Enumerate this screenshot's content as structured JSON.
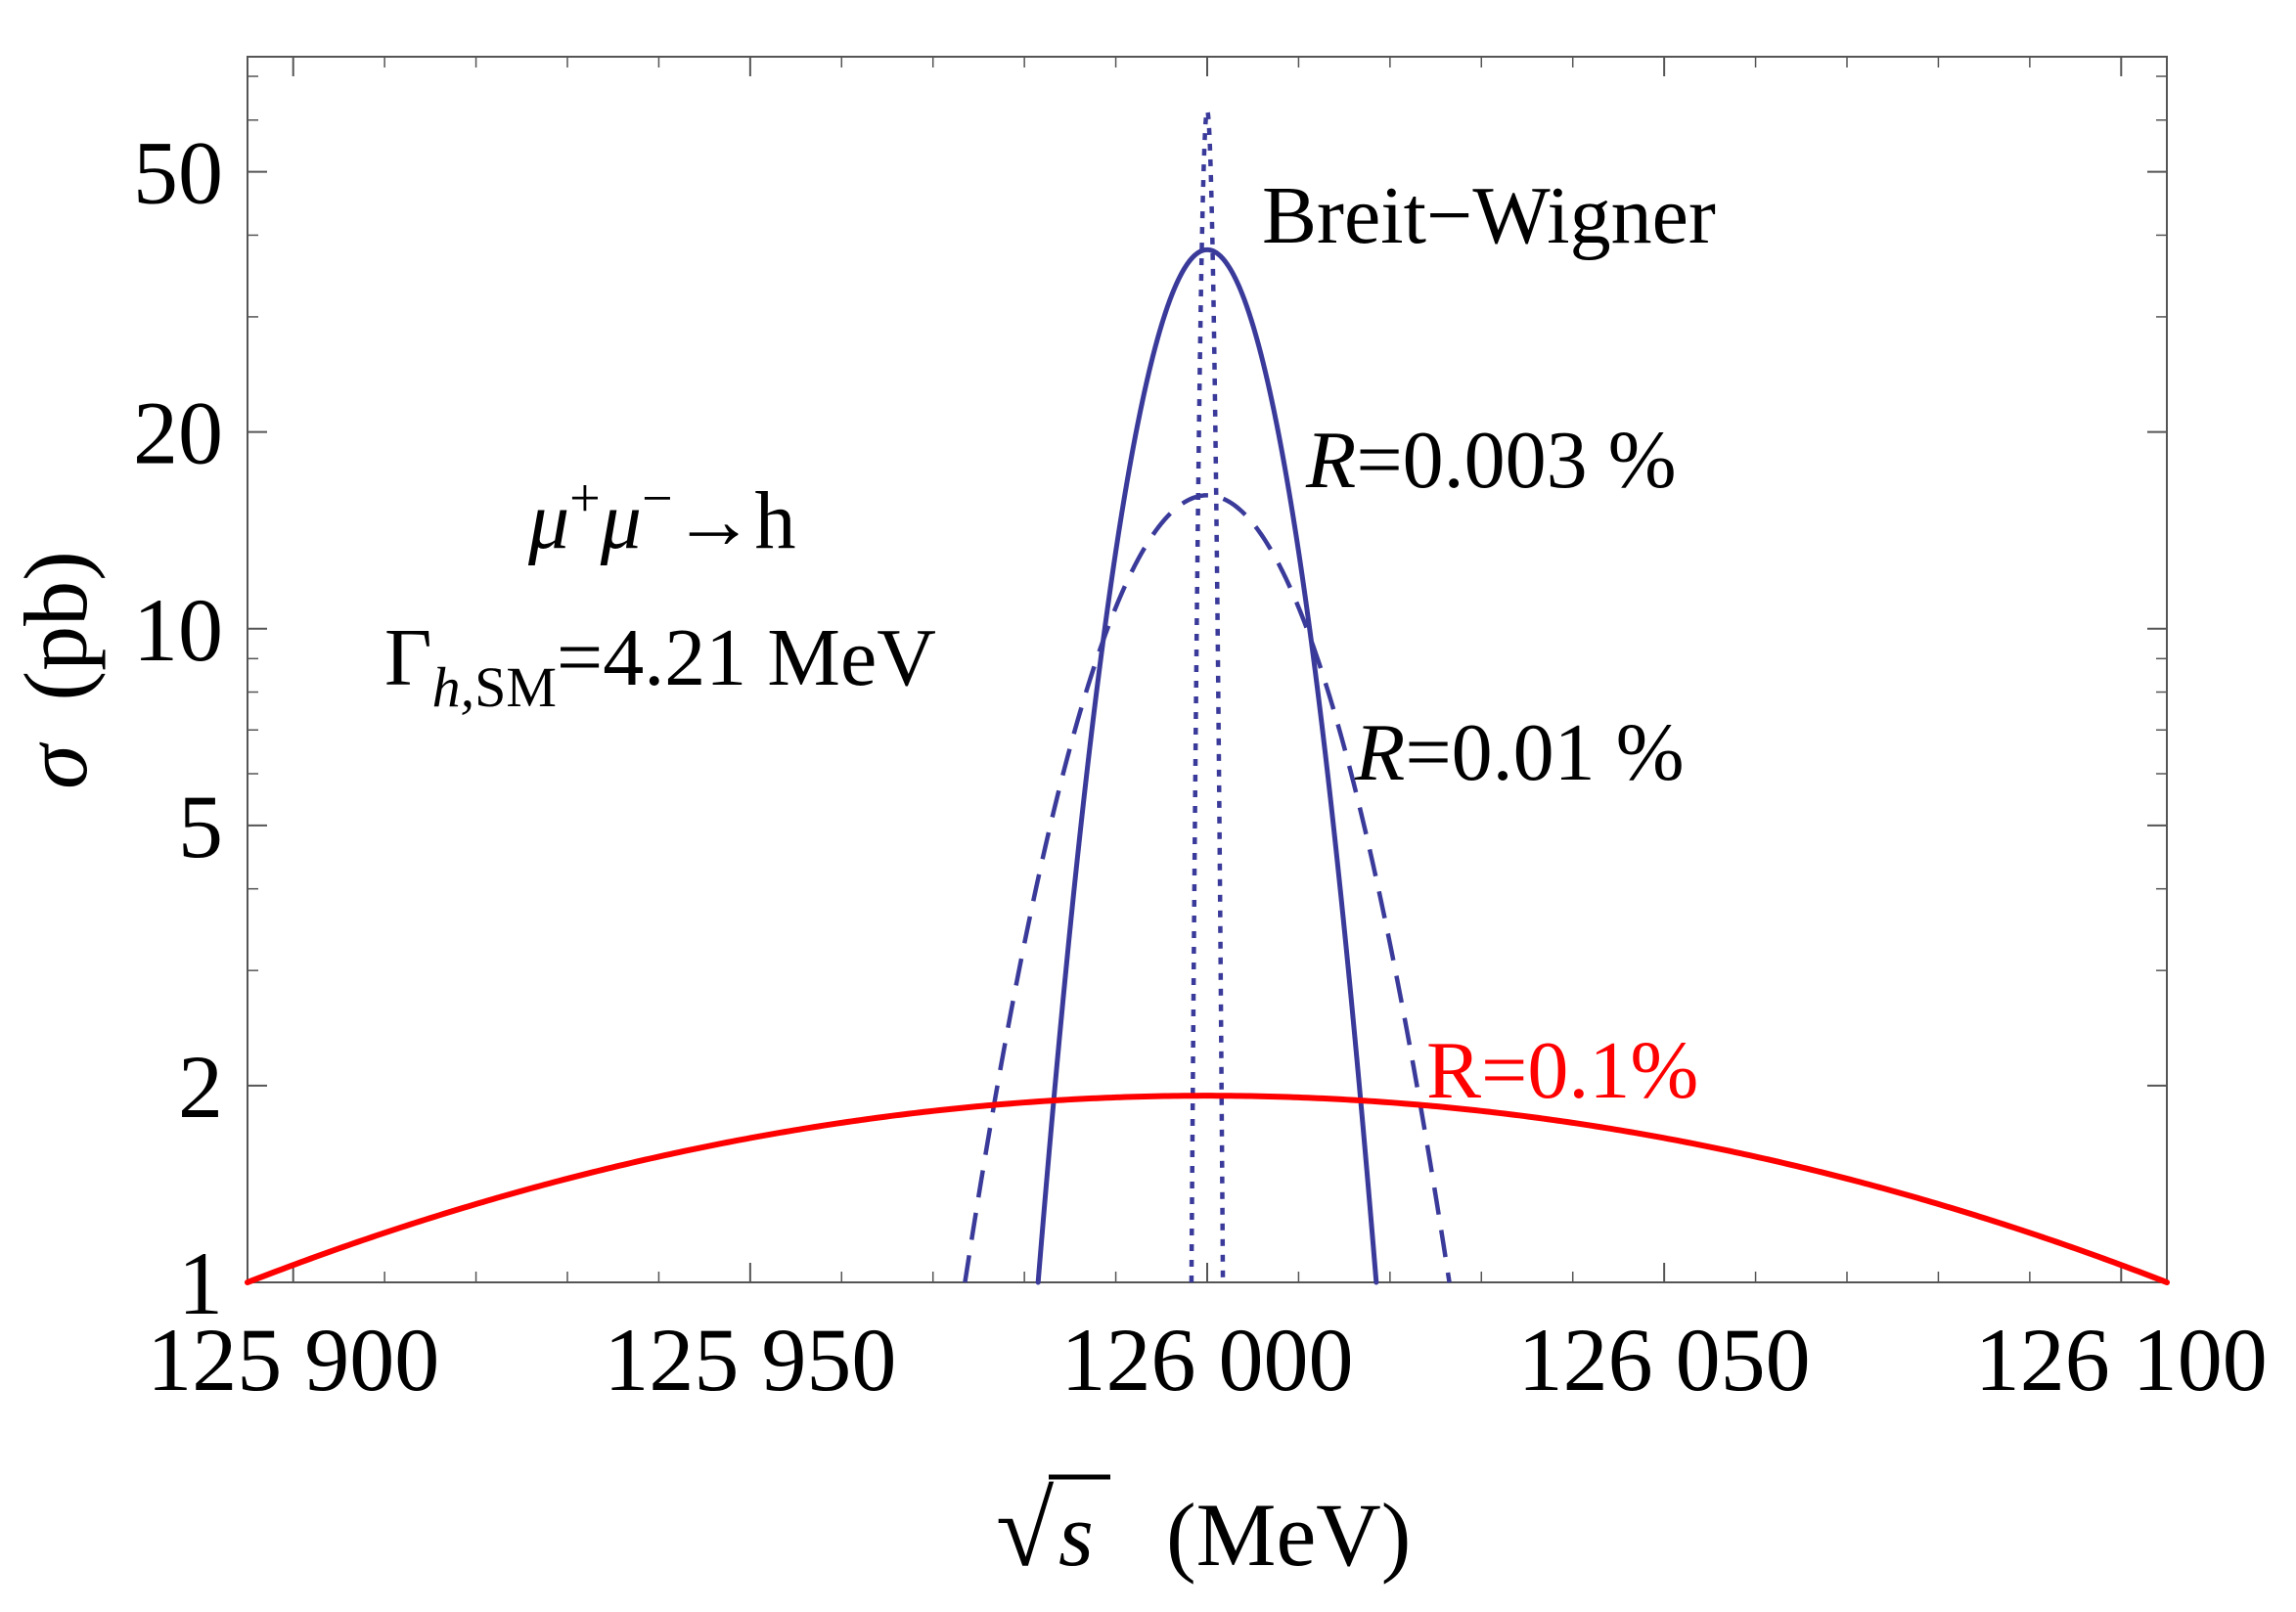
{
  "chart_data": {
    "type": "line",
    "xlabel_root": "√",
    "xlabel_var": "s",
    "xlabel_unit": "(MeV)",
    "ylabel_var": "σ",
    "ylabel_unit": "(pb)",
    "xlim": [
      125895,
      126105
    ],
    "ylim": [
      1,
      75
    ],
    "y_scale": "log",
    "x_ticks": [
      125900,
      125950,
      126000,
      126050,
      126100
    ],
    "x_tick_labels": [
      "125 900",
      "125 950",
      "126 000",
      "126 050",
      "126 100"
    ],
    "y_ticks": [
      1,
      2,
      5,
      10,
      20,
      50
    ],
    "y_tick_labels": [
      "1",
      "2",
      "5",
      "10",
      "20",
      "50"
    ],
    "series": [
      {
        "name": "Breit−Wigner",
        "color": "#3a3a9a",
        "style": "dotted",
        "peak_x": 126000,
        "peak_y": 62,
        "half_width_at_1pb": 1.72
      },
      {
        "name": "R=0.003 %",
        "color": "#3a3a9a",
        "style": "solid",
        "peak_x": 126000,
        "peak_y": 38,
        "half_width_at_1pb": 18.5
      },
      {
        "name": "R=0.01 %",
        "color": "#3a3a9a",
        "style": "dashed",
        "peak_x": 126000,
        "peak_y": 16,
        "half_width_at_1pb": 26.5
      },
      {
        "name": "R=0.1%",
        "color": "#ff0000",
        "style": "solid",
        "peak_x": 126000,
        "peak_y": 1.93,
        "half_width_at_1pb": 105
      }
    ],
    "annotations": {
      "process_mu1": "μ",
      "process_sup1": "+",
      "process_mu2": "μ",
      "process_sup2": "−",
      "process_rest": "→h",
      "width_gamma": "Γ",
      "width_sub_h": "h,",
      "width_sub_sm": "SM",
      "width_value": "=4.21 MeV"
    }
  }
}
